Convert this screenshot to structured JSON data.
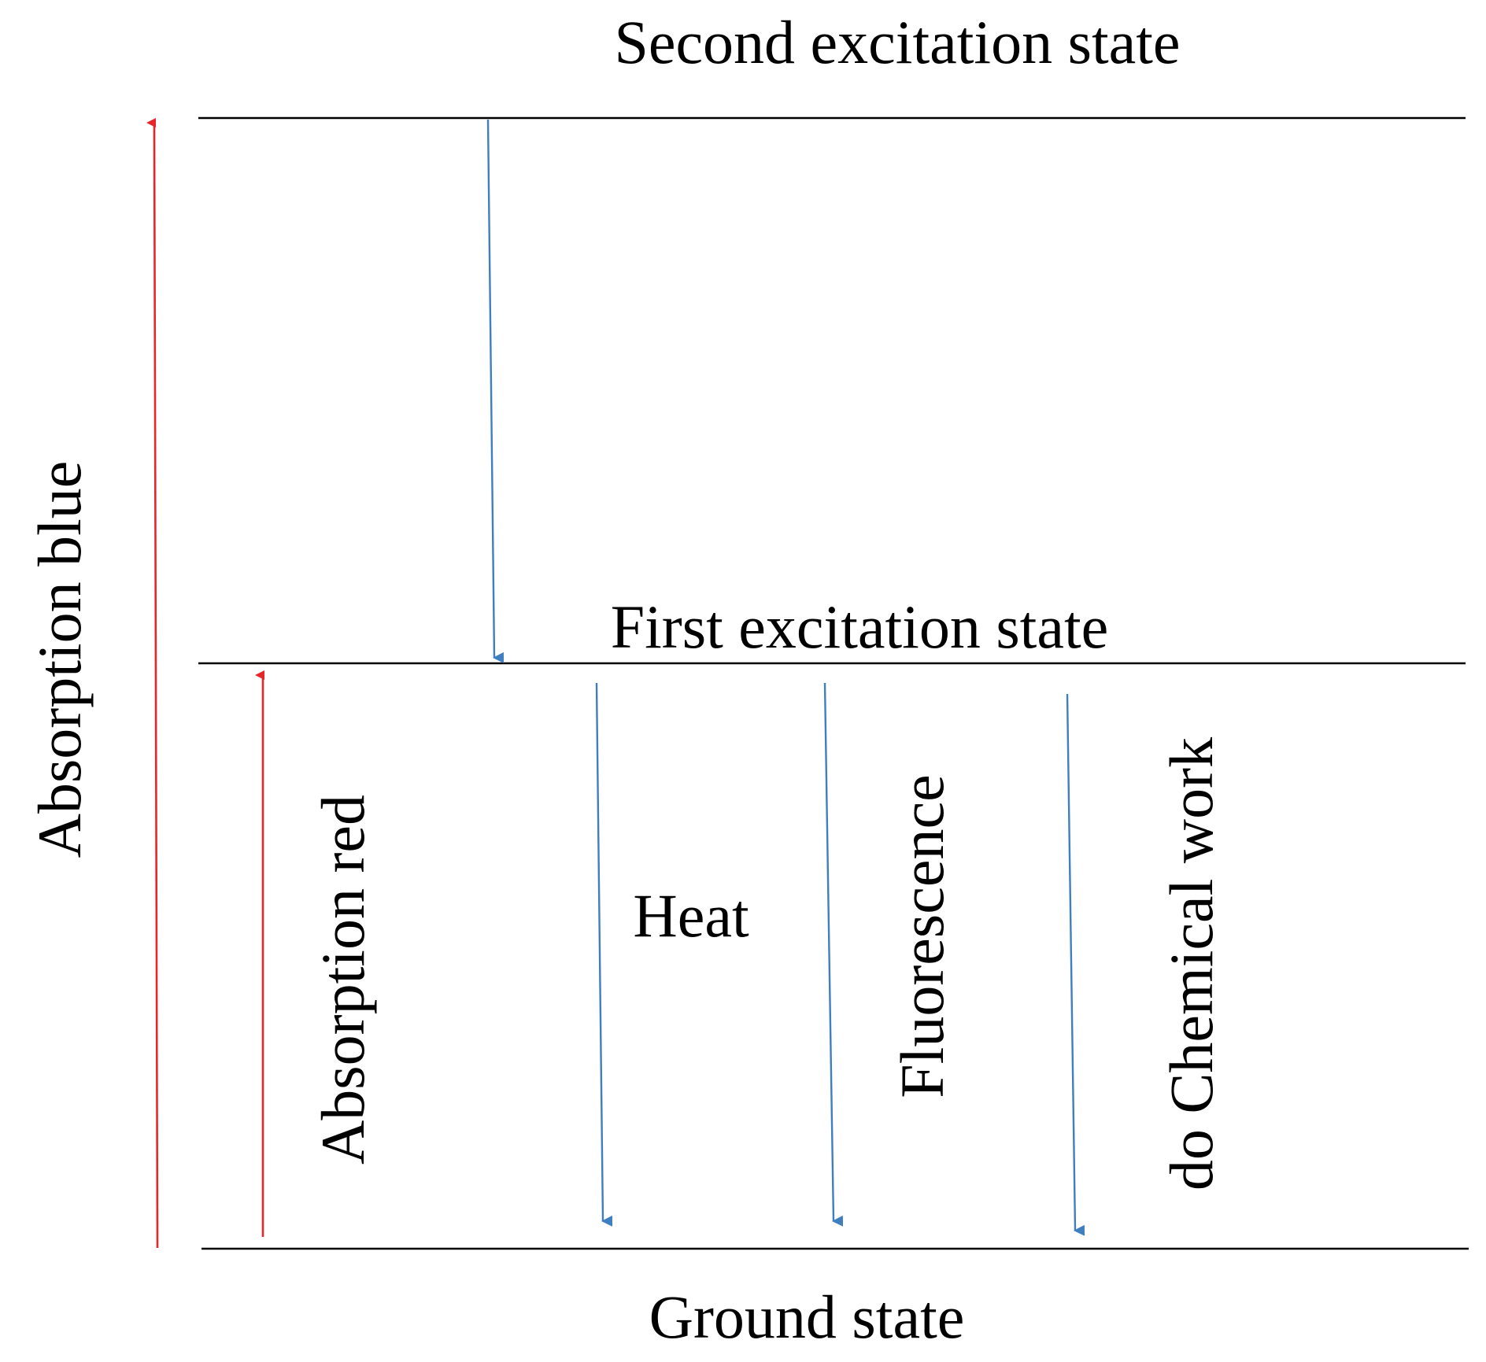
{
  "levels": {
    "second": "Second excitation state",
    "first": "First excitation state",
    "ground": "Ground state"
  },
  "transitions": {
    "absorption_blue": "Absorption blue",
    "absorption_red": "Absorption red",
    "heat": "Heat",
    "fluorescence": "Fluorescence",
    "chemical_work": "do Chemical work"
  },
  "colors": {
    "level_line": "#000000",
    "absorption_arrow": "#e8262a",
    "decay_arrow": "#3f7fc0"
  }
}
